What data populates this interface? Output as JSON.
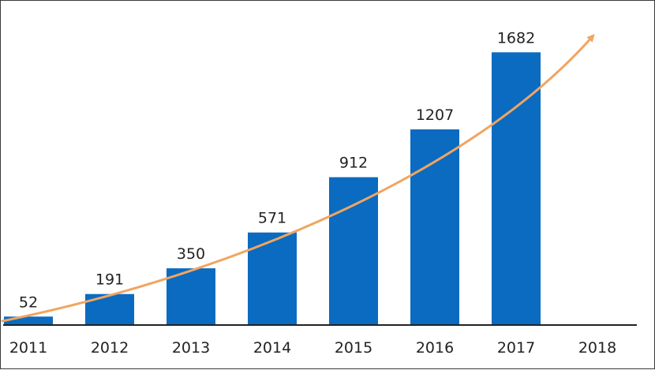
{
  "chart_data": {
    "type": "bar",
    "categories": [
      "2011",
      "2012",
      "2013",
      "2014",
      "2015",
      "2016",
      "2017",
      "2018"
    ],
    "values": [
      52,
      191,
      350,
      571,
      912,
      1207,
      1682,
      null
    ],
    "data_labels": [
      "52",
      "191",
      "350",
      "571",
      "912",
      "1207",
      "1682",
      ""
    ],
    "title": "",
    "xlabel": "",
    "ylabel": "",
    "ylim": [
      0,
      2000
    ],
    "grid": false,
    "legend": "none",
    "trend_arrow": true
  },
  "colors": {
    "bar": "#0a6bc1",
    "arrow": "#f0a561",
    "axis": "#222222",
    "frame": "#3a3a3a"
  }
}
